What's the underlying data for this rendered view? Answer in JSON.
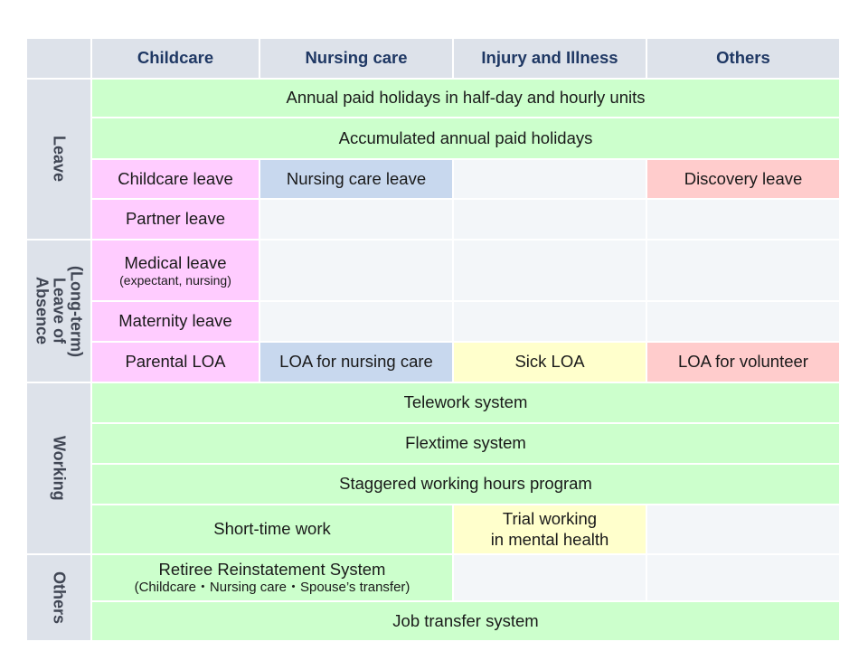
{
  "columns": [
    "Childcare",
    "Nursing care",
    "Injury and Illness",
    "Others"
  ],
  "categories": {
    "leave": "Leave",
    "loa": "(Long-term)\nLeave of\nAbsence",
    "working": "Working",
    "others": "Others"
  },
  "cells": {
    "annual_half_day": "Annual paid holidays in half-day and hourly units",
    "accumulated": "Accumulated annual paid holidays",
    "childcare_leave": "Childcare leave",
    "nursing_care_leave": "Nursing care leave",
    "discovery_leave": "Discovery leave",
    "partner_leave": "Partner leave",
    "medical_leave": "Medical leave",
    "medical_leave_note": "(expectant, nursing)",
    "maternity_leave": "Maternity leave",
    "parental_loa": "Parental LOA",
    "loa_nursing": "LOA for nursing care",
    "sick_loa": "Sick LOA",
    "loa_volunteer": "LOA for volunteer",
    "telework": "Telework system",
    "flextime": "Flextime system",
    "staggered": "Staggered working hours program",
    "short_time": "Short-time work",
    "trial_line1": "Trial working",
    "trial_line2": "in mental health",
    "retiree": "Retiree Reinstatement System",
    "retiree_note": "(Childcare・Nursing care・Spouse’s transfer)",
    "job_transfer": "Job transfer system"
  },
  "colors": {
    "header": "#dde2ea",
    "all_categories": "#ccffcc",
    "childcare": "#ffccff",
    "nursing_care": "#c8d8ee",
    "injury_illness": "#ffffcc",
    "others": "#ffcccc",
    "empty": "#f3f6f9"
  }
}
